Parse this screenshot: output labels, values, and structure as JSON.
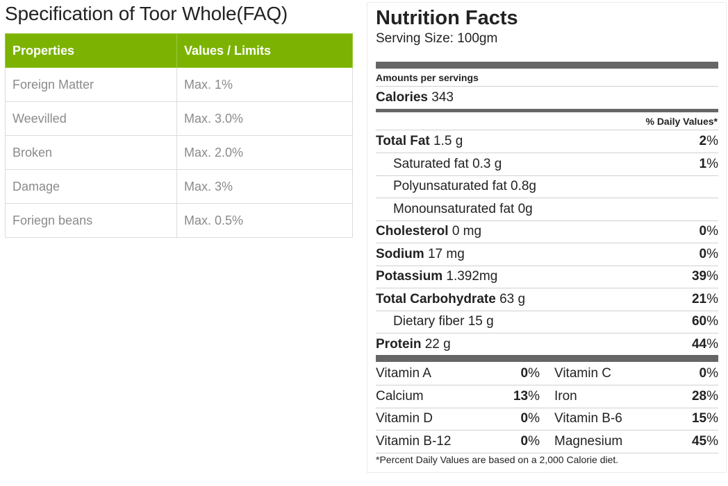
{
  "spec": {
    "title": "Specification of Toor Whole(FAQ)",
    "headers": [
      "Properties",
      "Values / Limits"
    ],
    "rows": [
      [
        "Foreign Matter",
        "Max. 1%"
      ],
      [
        "Weevilled",
        "Max. 3.0%"
      ],
      [
        "Broken",
        "Max. 2.0%"
      ],
      [
        "Damage",
        "Max. 3%"
      ],
      [
        "Foriegn beans",
        "Max. 0.5%"
      ]
    ],
    "header_color": "#7cb303"
  },
  "nutrition": {
    "title": "Nutrition Facts",
    "serving": "Serving Size: 100gm",
    "amounts_label": "Amounts per servings",
    "calories_label": "Calories",
    "calories_value": "343",
    "dv_header": "% Daily Values*",
    "nutrients": [
      {
        "name": "Total Fat",
        "amount": "1.5 g",
        "pct": "2",
        "bold": true,
        "indent": false
      },
      {
        "name": "Saturated fat 0.3 g",
        "amount": "",
        "pct": "1",
        "bold": false,
        "indent": true
      },
      {
        "name": "Polyunsaturated fat 0.8g",
        "amount": "",
        "pct": "",
        "bold": false,
        "indent": true
      },
      {
        "name": "Monounsaturated fat 0g",
        "amount": "",
        "pct": "",
        "bold": false,
        "indent": true
      },
      {
        "name": "Cholesterol",
        "amount": "0 mg",
        "pct": "0",
        "bold": true,
        "indent": false
      },
      {
        "name": "Sodium",
        "amount": "17 mg",
        "pct": "0",
        "bold": true,
        "indent": false
      },
      {
        "name": "Potassium",
        "amount": "1.392mg",
        "pct": "39",
        "bold": true,
        "indent": false
      },
      {
        "name": "Total Carbohydrate",
        "amount": "63 g",
        "pct": "21",
        "bold": true,
        "indent": false
      },
      {
        "name": "Dietary fiber 15 g",
        "amount": "",
        "pct": "60",
        "bold": false,
        "indent": true
      },
      {
        "name": "Protein",
        "amount": "22 g",
        "pct": "44",
        "bold": true,
        "indent": false
      }
    ],
    "vitamins": [
      [
        {
          "name": "Vitamin A",
          "pct": "0"
        },
        {
          "name": "Vitamin C",
          "pct": "0"
        }
      ],
      [
        {
          "name": "Calcium",
          "pct": "13"
        },
        {
          "name": "Iron",
          "pct": "28"
        }
      ],
      [
        {
          "name": "Vitamin D",
          "pct": "0"
        },
        {
          "name": "Vitamin B-6",
          "pct": "15"
        }
      ],
      [
        {
          "name": "Vitamin B-12",
          "pct": "0"
        },
        {
          "name": "Magnesium",
          "pct": "45"
        }
      ]
    ],
    "percent_sign": "%",
    "footnote": "*Percent Daily Values are based on a 2,000 Calorie diet."
  }
}
